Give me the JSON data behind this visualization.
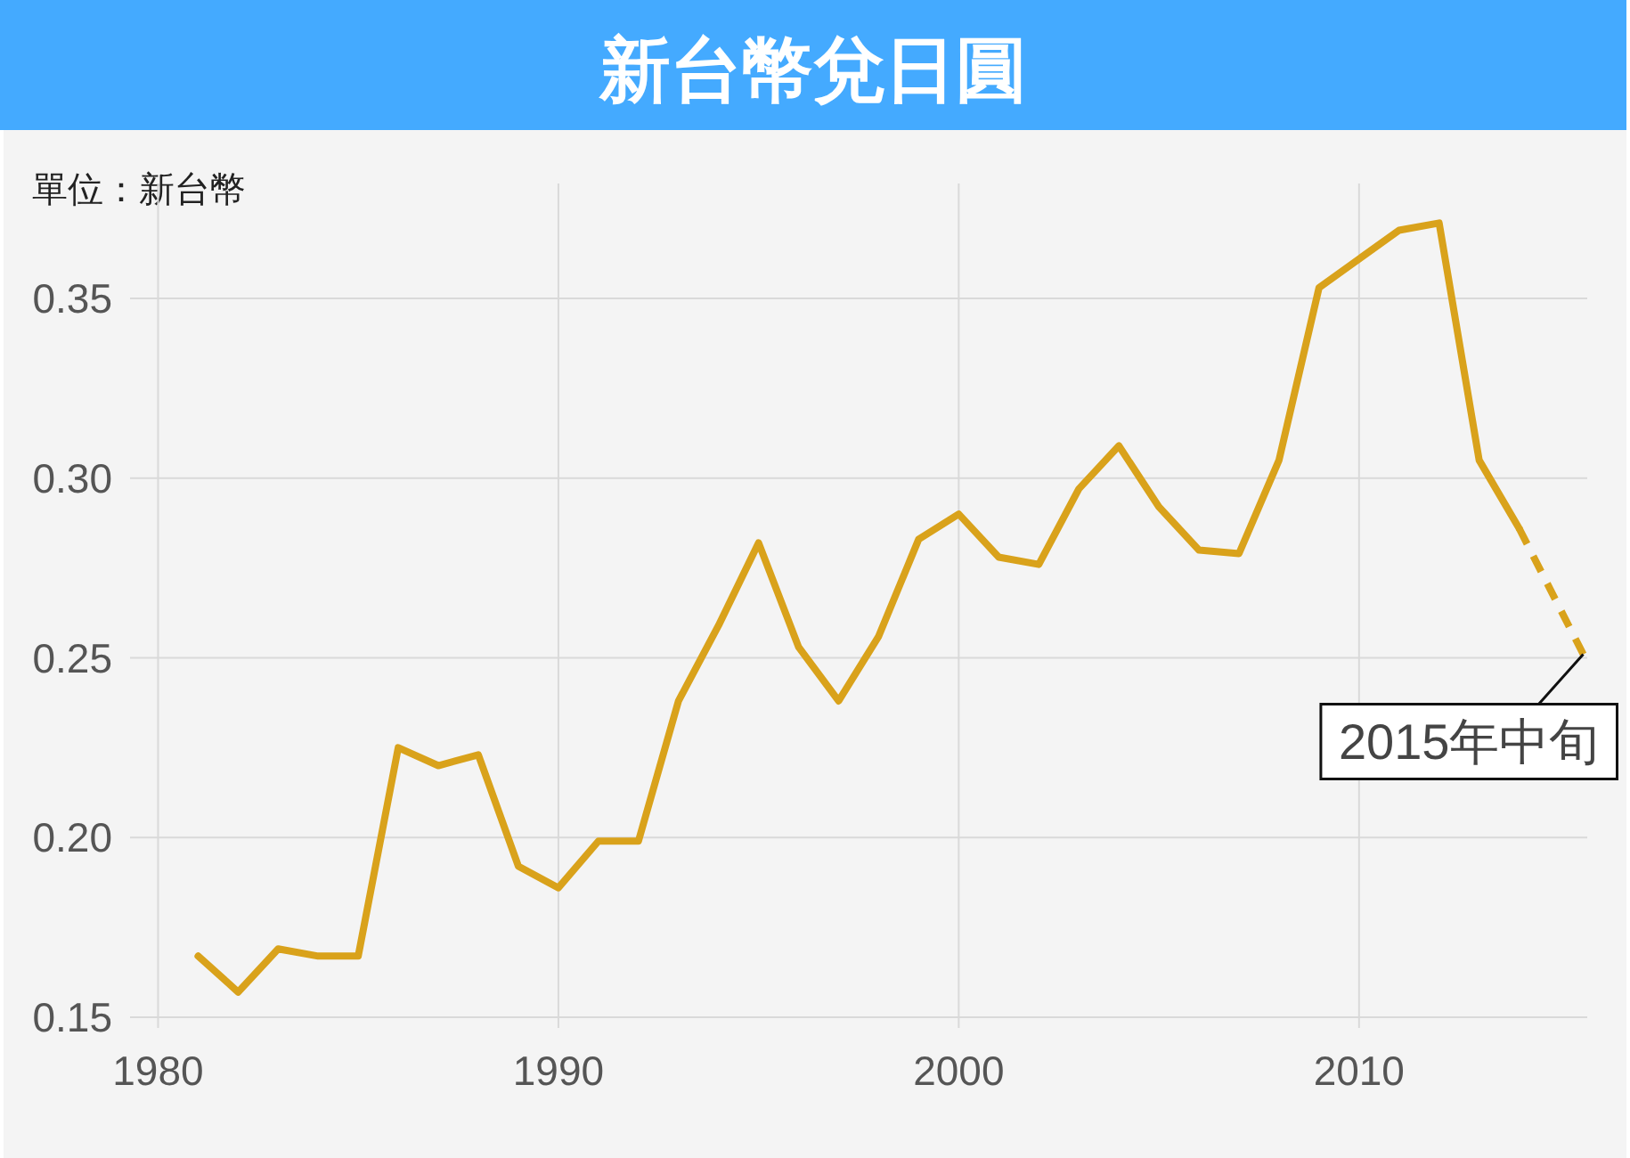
{
  "chart_data": {
    "type": "line",
    "title": "新台幣兌日圓",
    "ylabel": "單位：新台幣",
    "x": [
      1981,
      1982,
      1983,
      1984,
      1985,
      1986,
      1987,
      1988,
      1989,
      1990,
      1991,
      1992,
      1993,
      1994,
      1995,
      1996,
      1997,
      1998,
      1999,
      2000,
      2001,
      2002,
      2003,
      2004,
      2005,
      2006,
      2007,
      2008,
      2009,
      2010,
      2011,
      2012,
      2013,
      2014
    ],
    "series": [
      {
        "color": "#d9a21b",
        "line_style": "solid",
        "values": [
          0.167,
          0.157,
          0.169,
          0.167,
          0.167,
          0.225,
          0.22,
          0.223,
          0.192,
          0.186,
          0.199,
          0.199,
          0.238,
          0.259,
          0.282,
          0.253,
          0.238,
          0.256,
          0.283,
          0.29,
          0.278,
          0.276,
          0.297,
          0.309,
          0.292,
          0.28,
          0.279,
          0.305,
          0.353,
          0.361,
          0.369,
          0.371,
          0.305,
          0.286
        ]
      },
      {
        "color": "#d9a21b",
        "line_style": "dashed",
        "x": [
          2014,
          2015.6
        ],
        "values": [
          0.286,
          0.251
        ]
      }
    ],
    "xlim": [
      1979.3,
      2015.7
    ],
    "ylim": [
      0.147,
      0.382
    ],
    "xticks": [
      1980,
      1990,
      2000,
      2010
    ],
    "yticks": [
      0.15,
      {
        "value": 0.2,
        "label": "0.20"
      },
      0.25,
      {
        "value": 0.3,
        "label": "0.30"
      },
      0.35
    ],
    "grid": true,
    "annotations": [
      {
        "text": "2015年中旬",
        "x": 2015.6,
        "y": 0.251
      }
    ]
  }
}
